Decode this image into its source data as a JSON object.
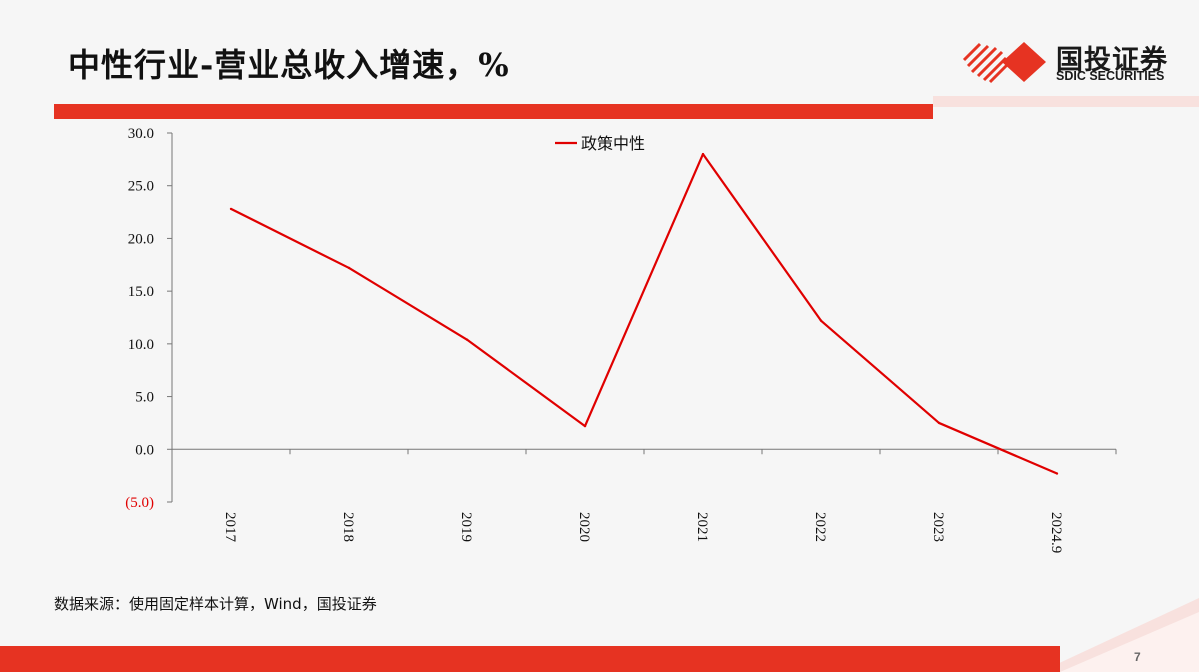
{
  "title": "中性行业-营业总收入增速，%",
  "logo": {
    "name_cn": "国投证券",
    "name_en": "SDIC SECURITIES"
  },
  "source": "数据来源：使用固定样本计算，Wind，国投证券",
  "page_number": "7",
  "colors": {
    "accent": "#e63322",
    "line": "#e00000"
  },
  "chart_data": {
    "type": "line",
    "categories": [
      "2017",
      "2018",
      "2019",
      "2020",
      "2021",
      "2022",
      "2023",
      "2024.9"
    ],
    "series": [
      {
        "name": "政策中性",
        "values": [
          22.8,
          17.2,
          10.4,
          2.2,
          28.0,
          12.2,
          2.5,
          -2.3
        ],
        "color": "#e00000"
      }
    ],
    "ylim": [
      -5,
      30
    ],
    "yticks": [
      -5,
      0,
      5,
      10,
      15,
      20,
      25,
      30
    ],
    "ytick_labels": [
      "(5.0)",
      "0.0",
      "5.0",
      "10.0",
      "15.0",
      "20.0",
      "25.0",
      "30.0"
    ],
    "legend_position": "top-center",
    "grid": false
  }
}
